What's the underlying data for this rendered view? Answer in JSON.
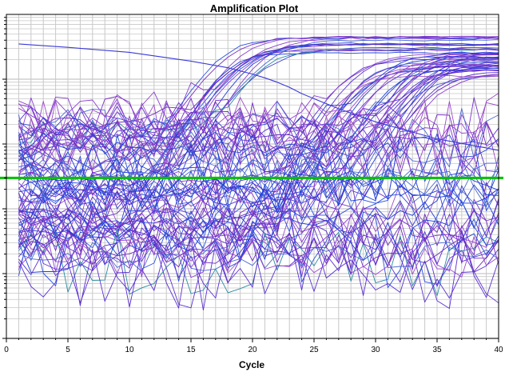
{
  "chart_data": {
    "type": "line",
    "title": "Amplification Plot",
    "xlabel": "Cycle",
    "ylabel": "",
    "xlim": [
      0,
      40
    ],
    "xticks": [
      0,
      5,
      10,
      15,
      20,
      25,
      30,
      35,
      40
    ],
    "x_tick_labels": [
      "0",
      "5",
      "10",
      "15",
      "20",
      "25",
      "30",
      "35",
      "40"
    ],
    "y_scale": "log",
    "ylim": [
      0.0001,
      10
    ],
    "y_tick_labels_visible": false,
    "grid": true,
    "legend": "none",
    "threshold": {
      "value": 0.03,
      "color": "#00c000"
    },
    "curve_groups": [
      {
        "name_hidden": true,
        "count": 16,
        "ct_range": [
          15,
          19
        ],
        "plateau_range": [
          2.2,
          4.5
        ],
        "baseline_range": [
          0.003,
          0.3
        ],
        "color": "#1f3fd8"
      },
      {
        "name_hidden": true,
        "count": 34,
        "ct_range": [
          25,
          33
        ],
        "plateau_range": [
          1.1,
          2.6
        ],
        "baseline_range": [
          0.002,
          0.25
        ],
        "color": "#7a2fc8"
      },
      {
        "name_hidden": true,
        "count": 40,
        "ct_range": null,
        "plateau_range": null,
        "baseline_range": [
          0.0008,
          0.2
        ],
        "color": "#8a3fd0"
      }
    ],
    "special_series": [
      {
        "x": [
          1,
          5,
          10,
          15,
          18,
          20,
          21,
          22,
          23,
          24,
          25,
          27,
          30,
          35,
          40
        ],
        "y": [
          3.5,
          3.1,
          2.6,
          1.9,
          1.5,
          1.2,
          1.05,
          0.9,
          0.75,
          0.6,
          0.5,
          0.35,
          0.22,
          0.12,
          0.08
        ],
        "color": "#3a3ad8"
      }
    ],
    "colors": {
      "background": "#ffffff",
      "grid": "#c8c8c8",
      "axis": "#000000",
      "series_palette": [
        "#1f3fd8",
        "#2a4fe0",
        "#3b3bd0",
        "#5a2fd0",
        "#7a2fc8",
        "#8a3fd0",
        "#2a8aa0",
        "#4a6ad0",
        "#6a2ab8",
        "#9a4ac8"
      ]
    }
  }
}
